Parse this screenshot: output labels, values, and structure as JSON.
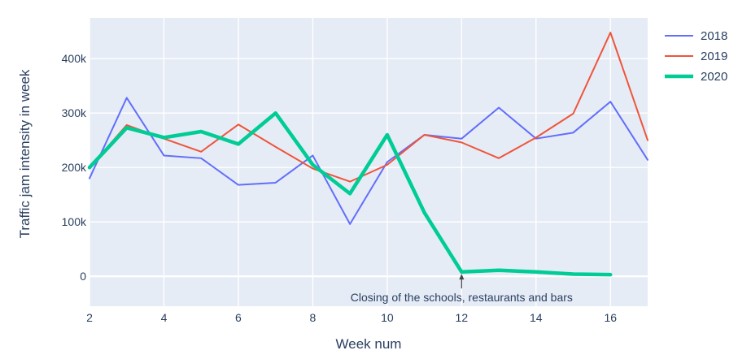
{
  "chart_data": {
    "type": "line",
    "title": "",
    "xlabel": "Week num",
    "ylabel": "Traffic jam intensity in week",
    "xlim": [
      2,
      17
    ],
    "ylim": [
      -55000,
      475000
    ],
    "x_ticks": [
      {
        "value": 2,
        "label": "2"
      },
      {
        "value": 4,
        "label": "4"
      },
      {
        "value": 6,
        "label": "6"
      },
      {
        "value": 8,
        "label": "8"
      },
      {
        "value": 10,
        "label": "10"
      },
      {
        "value": 12,
        "label": "12"
      },
      {
        "value": 14,
        "label": "14"
      },
      {
        "value": 16,
        "label": "16"
      }
    ],
    "y_ticks": [
      {
        "value": 0,
        "label": "0"
      },
      {
        "value": 100000,
        "label": "100k"
      },
      {
        "value": 200000,
        "label": "200k"
      },
      {
        "value": 300000,
        "label": "300k"
      },
      {
        "value": 400000,
        "label": "400k"
      }
    ],
    "grid": true,
    "plot_background": "#e5ecf6",
    "legend_position": "right",
    "series": [
      {
        "name": "2018",
        "color": "#636efa",
        "line_width": "thin",
        "x": [
          2,
          3,
          4,
          5,
          6,
          7,
          8,
          9,
          10,
          11,
          12,
          13,
          14,
          15,
          16,
          17
        ],
        "y": [
          180000,
          328000,
          222000,
          217000,
          168000,
          172000,
          222000,
          96000,
          210000,
          260000,
          253000,
          310000,
          253000,
          264000,
          321000,
          214000
        ]
      },
      {
        "name": "2019",
        "color": "#ef553b",
        "line_width": "thin",
        "x": [
          2,
          3,
          4,
          5,
          6,
          7,
          8,
          9,
          10,
          11,
          12,
          13,
          14,
          15,
          16,
          17
        ],
        "y": [
          200000,
          278000,
          253000,
          229000,
          279000,
          238000,
          198000,
          174000,
          205000,
          260000,
          246000,
          217000,
          255000,
          299000,
          448000,
          250000
        ]
      },
      {
        "name": "2020",
        "color": "#00cc96",
        "line_width": "thick",
        "x": [
          2,
          3,
          4,
          5,
          6,
          7,
          8,
          9,
          10,
          11,
          12,
          13,
          14,
          15,
          16
        ],
        "y": [
          200000,
          273000,
          255000,
          266000,
          243000,
          300000,
          205000,
          152000,
          260000,
          117000,
          8000,
          11000,
          8000,
          4000,
          3000
        ]
      }
    ],
    "annotations": [
      {
        "text": "Closing of the schools, restaurants and bars",
        "x": 12,
        "y": 3000
      }
    ]
  }
}
